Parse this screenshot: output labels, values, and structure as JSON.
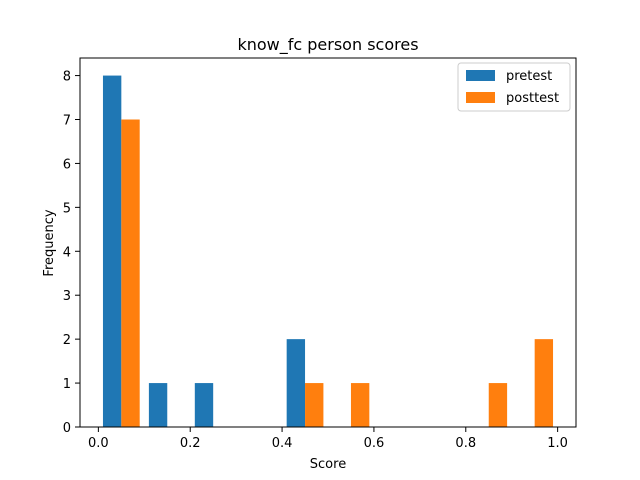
{
  "chart_data": {
    "type": "bar",
    "title": "know_fc person scores",
    "xlabel": "Score",
    "ylabel": "Frequency",
    "xlim": [
      -0.04,
      1.04
    ],
    "ylim": [
      0,
      8.4
    ],
    "xticks": [
      0.0,
      0.2,
      0.4,
      0.6,
      0.8,
      1.0
    ],
    "xtick_labels": [
      "0.0",
      "0.2",
      "0.4",
      "0.6",
      "0.8",
      "1.0"
    ],
    "yticks": [
      0,
      1,
      2,
      3,
      4,
      5,
      6,
      7,
      8
    ],
    "ytick_labels": [
      "0",
      "1",
      "2",
      "3",
      "4",
      "5",
      "6",
      "7",
      "8"
    ],
    "bin_edges": [
      0.0,
      0.1,
      0.2,
      0.3,
      0.4,
      0.5,
      0.6,
      0.7,
      0.8,
      0.9,
      1.0
    ],
    "grid": false,
    "legend_position": "top-right",
    "series": [
      {
        "name": "pretest",
        "color": "#1f77b4",
        "values": [
          8,
          1,
          1,
          0,
          2,
          0,
          0,
          0,
          0,
          0
        ]
      },
      {
        "name": "posttest",
        "color": "#ff7f0e",
        "values": [
          7,
          0,
          0,
          0,
          1,
          1,
          0,
          0,
          1,
          2
        ]
      }
    ]
  }
}
